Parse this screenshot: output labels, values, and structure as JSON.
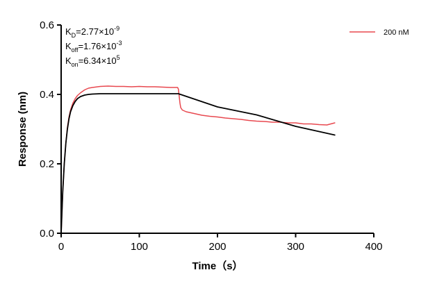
{
  "chart_data": {
    "type": "line",
    "xlabel": "Time（s）",
    "ylabel": "Response (nm)",
    "xlim": [
      0,
      400
    ],
    "ylim": [
      0,
      0.6
    ],
    "xticks": [
      0,
      100,
      200,
      300,
      400
    ],
    "yticks": [
      0.0,
      0.2,
      0.4,
      0.6
    ],
    "xtick_labels": [
      "0",
      "100",
      "200",
      "300",
      "400"
    ],
    "ytick_labels": [
      "0.0",
      "0.2",
      "0.4",
      "0.6"
    ],
    "grid": false,
    "legend_position": "top-right",
    "annotations": [
      {
        "base": "K",
        "sub": "D",
        "mid": "=2.77×10",
        "sup": "-9"
      },
      {
        "base": "K",
        "sub": "off",
        "mid": "=1.76×10",
        "sup": "-3"
      },
      {
        "base": "K",
        "sub": "on",
        "mid": "=6.34×10",
        "sup": "5"
      }
    ],
    "series": [
      {
        "name": "200 nM",
        "color": "#e8484f",
        "role": "measured",
        "x": [
          0,
          2,
          4,
          6,
          8,
          10,
          12,
          15,
          18,
          21,
          25,
          30,
          35,
          40,
          50,
          60,
          70,
          80,
          90,
          100,
          110,
          120,
          130,
          140,
          149,
          150,
          151,
          152,
          153,
          155,
          160,
          170,
          180,
          190,
          200,
          210,
          220,
          230,
          240,
          250,
          260,
          270,
          280,
          290,
          300,
          310,
          320,
          330,
          340,
          350
        ],
        "y": [
          0.0,
          0.12,
          0.2,
          0.26,
          0.305,
          0.335,
          0.355,
          0.375,
          0.388,
          0.397,
          0.405,
          0.413,
          0.418,
          0.42,
          0.423,
          0.424,
          0.423,
          0.423,
          0.422,
          0.423,
          0.422,
          0.422,
          0.421,
          0.42,
          0.42,
          0.415,
          0.395,
          0.375,
          0.362,
          0.355,
          0.35,
          0.345,
          0.34,
          0.337,
          0.335,
          0.332,
          0.33,
          0.328,
          0.325,
          0.323,
          0.322,
          0.32,
          0.32,
          0.318,
          0.318,
          0.315,
          0.315,
          0.313,
          0.312,
          0.318
        ]
      },
      {
        "name": "",
        "color": "#000000",
        "role": "fit",
        "x": [
          0,
          2,
          4,
          6,
          8,
          10,
          12,
          15,
          18,
          21,
          25,
          30,
          35,
          40,
          50,
          60,
          80,
          100,
          120,
          150,
          200,
          250,
          300,
          350
        ],
        "y": [
          0.0,
          0.12,
          0.2,
          0.26,
          0.3,
          0.33,
          0.35,
          0.368,
          0.38,
          0.388,
          0.394,
          0.398,
          0.4,
          0.401,
          0.402,
          0.402,
          0.402,
          0.402,
          0.402,
          0.402,
          0.364,
          0.341,
          0.308,
          0.283
        ]
      }
    ]
  }
}
